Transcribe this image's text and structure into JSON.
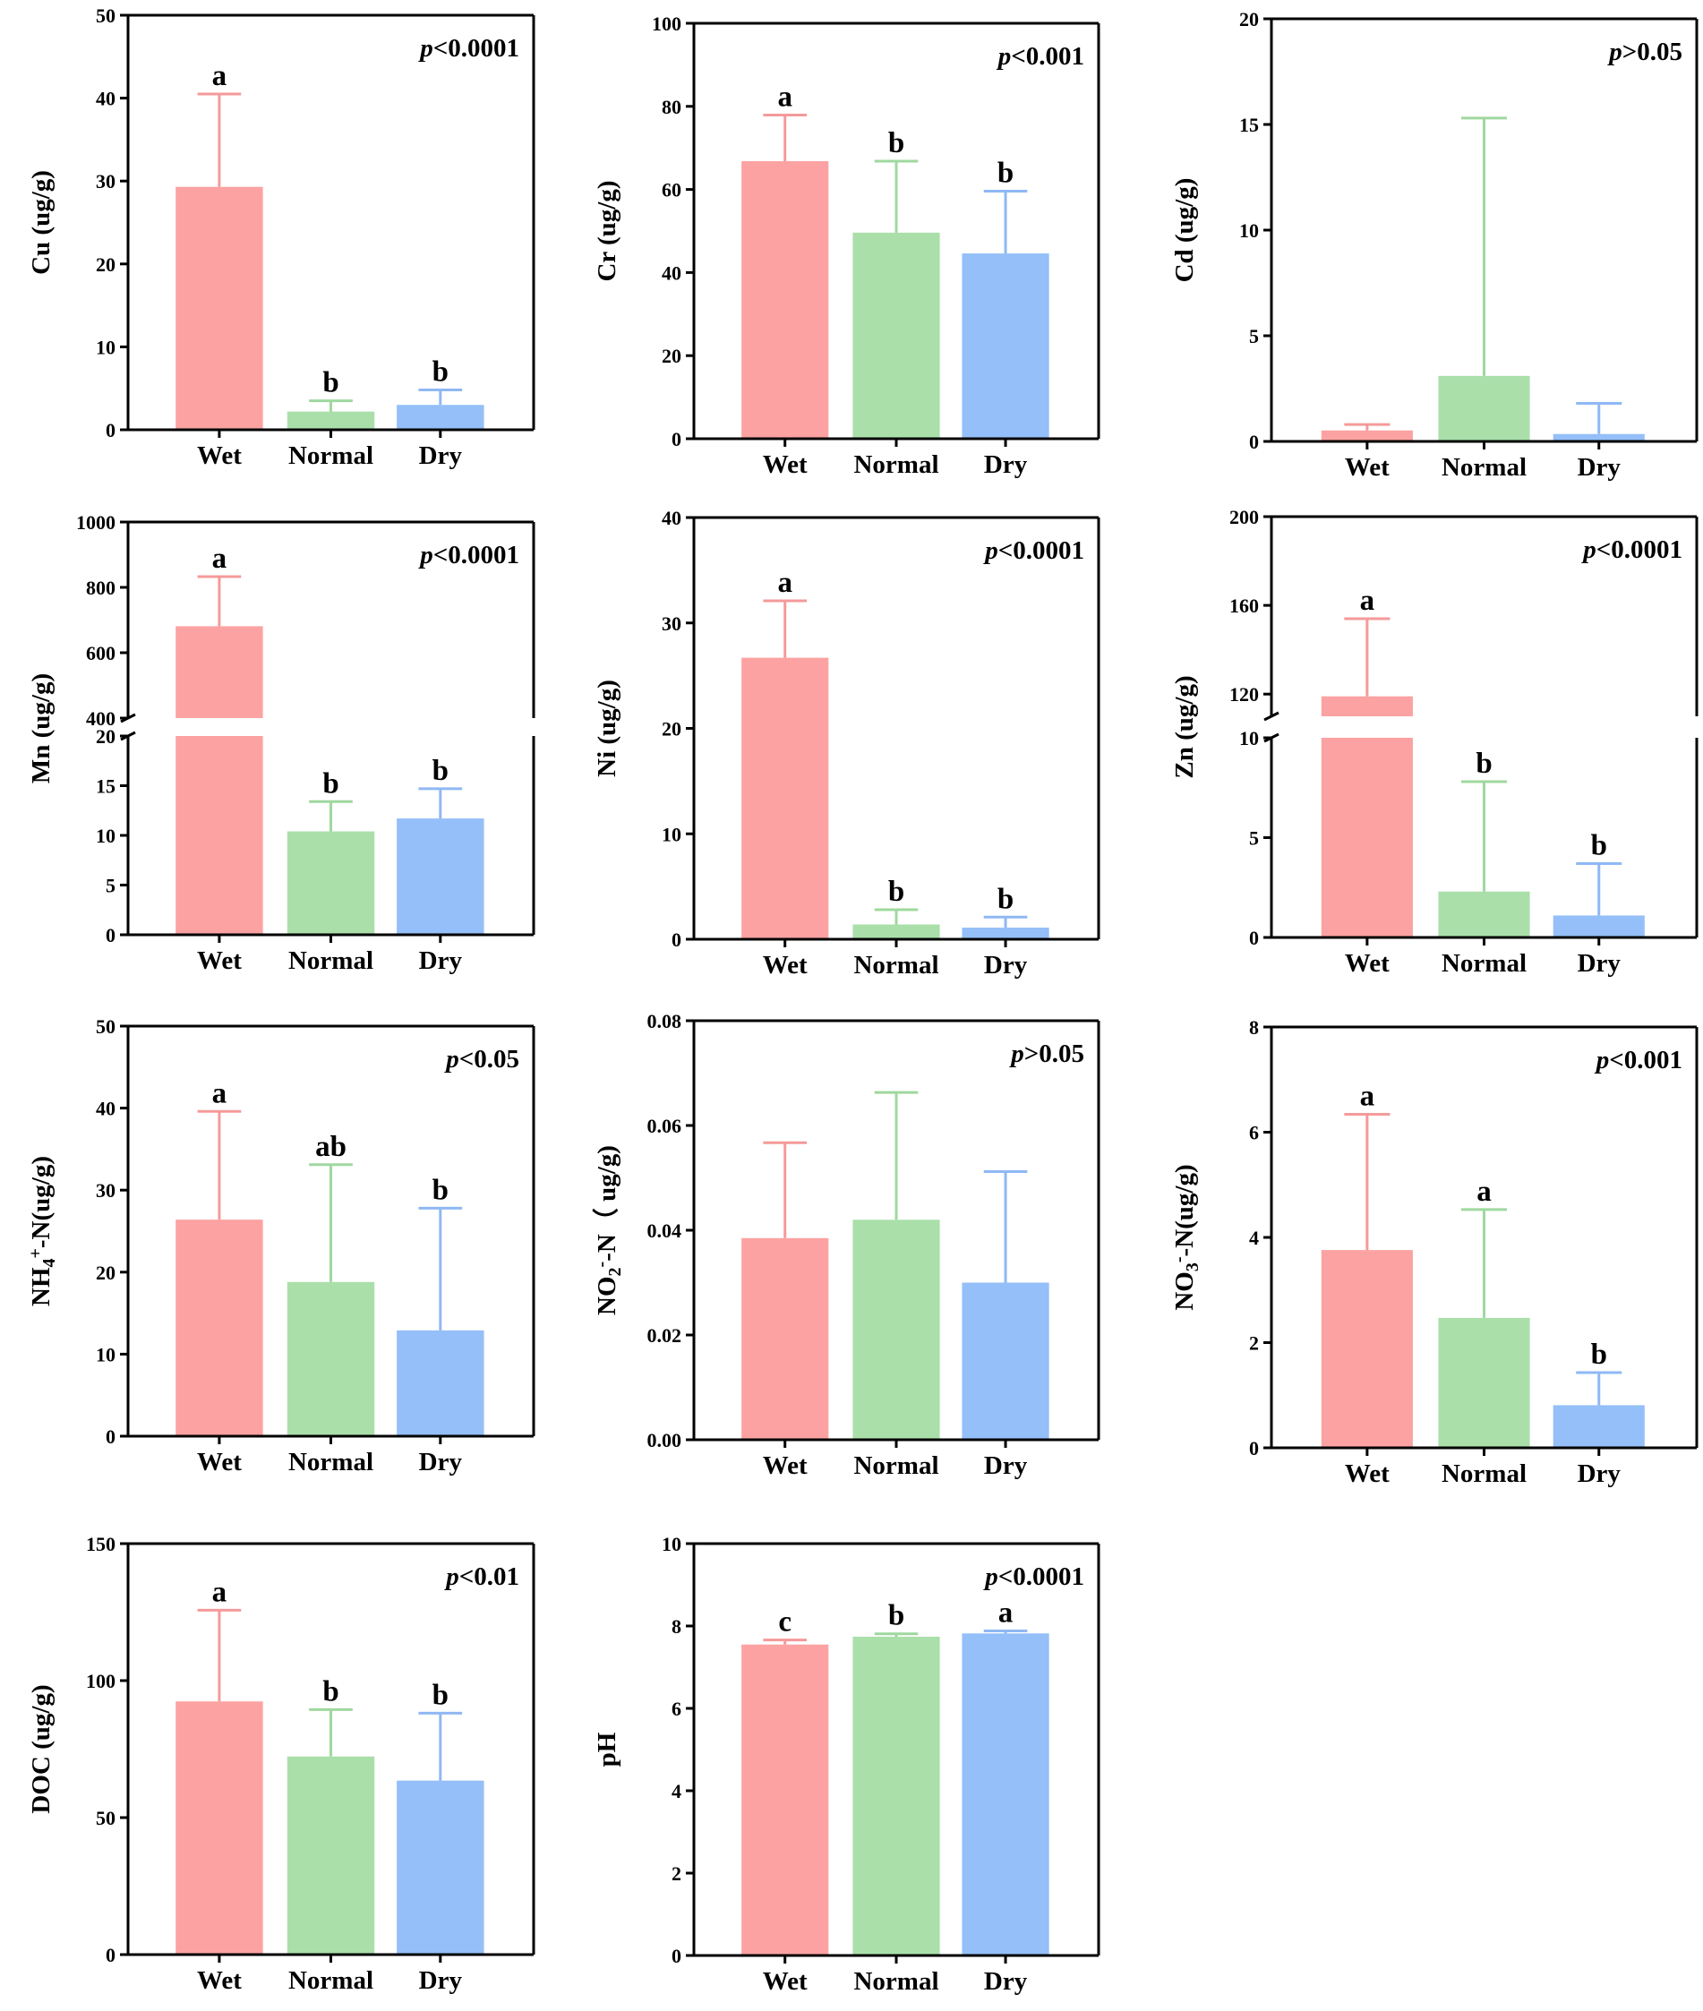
{
  "colors": {
    "Wet": "#fca2a2",
    "Normal": "#aadfaa",
    "Dry": "#94bff8",
    "Wet_err": "#f59a9a",
    "Normal_err": "#9fd89f",
    "Dry_err": "#8fb8f4"
  },
  "chart_data": [
    {
      "type": "bar",
      "title": "",
      "ylabel": "Cu (ug/g)",
      "ylabel_parts": [
        {
          "t": "Cu (ug/g)"
        }
      ],
      "p": "<0.0001",
      "categories": [
        "Wet",
        "Normal",
        "Dry"
      ],
      "values": [
        29.3,
        2.2,
        3.0
      ],
      "errors": [
        40.5,
        3.5,
        4.8
      ],
      "letters": [
        "a",
        "b",
        "b"
      ],
      "ylim": [
        0,
        50
      ],
      "ticks": [
        0,
        10,
        20,
        30,
        40,
        50
      ],
      "tick_labels": [
        "0",
        "10",
        "20",
        "30",
        "40",
        "50"
      ]
    },
    {
      "type": "bar",
      "title": "",
      "ylabel": "Cr (ug/g)",
      "ylabel_parts": [
        {
          "t": "Cr (ug/g)"
        }
      ],
      "p": "<0.001",
      "categories": [
        "Wet",
        "Normal",
        "Dry"
      ],
      "values": [
        66.8,
        49.6,
        44.6
      ],
      "errors": [
        77.9,
        66.8,
        59.6
      ],
      "letters": [
        "a",
        "b",
        "b"
      ],
      "ylim": [
        0,
        100
      ],
      "ticks": [
        0,
        20,
        40,
        60,
        80,
        100
      ],
      "tick_labels": [
        "0",
        "20",
        "40",
        "60",
        "80",
        "100"
      ]
    },
    {
      "type": "bar",
      "title": "",
      "ylabel": "Cd (ug/g)",
      "ylabel_parts": [
        {
          "t": "Cd (ug/g)"
        }
      ],
      "p": ">0.05",
      "categories": [
        "Wet",
        "Normal",
        "Dry"
      ],
      "values": [
        0.52,
        3.1,
        0.35
      ],
      "errors": [
        0.8,
        15.3,
        1.8
      ],
      "letters": [
        "",
        "",
        ""
      ],
      "ylim": [
        0,
        20
      ],
      "ticks": [
        0,
        5,
        10,
        15,
        20
      ],
      "tick_labels": [
        "0",
        "5",
        "10",
        "15",
        "20"
      ]
    },
    {
      "type": "bar",
      "title": "",
      "ylabel": "Mn (ug/g)",
      "ylabel_parts": [
        {
          "t": "Mn (ug/g)"
        }
      ],
      "p": "<0.0001",
      "categories": [
        "Wet",
        "Normal",
        "Dry"
      ],
      "values": [
        681,
        10.4,
        11.7
      ],
      "errors": [
        833,
        13.4,
        14.7
      ],
      "letters": [
        "a",
        "b",
        "b"
      ],
      "axis_break": {
        "lower": [
          0,
          20
        ],
        "upper": [
          400,
          1000
        ]
      },
      "ticks": [
        0,
        5,
        10,
        15,
        20,
        400,
        600,
        800,
        1000
      ],
      "tick_labels": [
        "0",
        "5",
        "10",
        "15",
        "20",
        "400",
        "600",
        "800",
        "1000"
      ]
    },
    {
      "type": "bar",
      "title": "",
      "ylabel": "Ni (ug/g)",
      "ylabel_parts": [
        {
          "t": "Ni (ug/g)"
        }
      ],
      "p": "<0.0001",
      "categories": [
        "Wet",
        "Normal",
        "Dry"
      ],
      "values": [
        26.7,
        1.4,
        1.1
      ],
      "errors": [
        32.1,
        2.8,
        2.1
      ],
      "letters": [
        "a",
        "b",
        "b"
      ],
      "ylim": [
        0,
        40
      ],
      "ticks": [
        0,
        10,
        20,
        30,
        40
      ],
      "tick_labels": [
        "0",
        "10",
        "20",
        "30",
        "40"
      ]
    },
    {
      "type": "bar",
      "title": "",
      "ylabel": "Zn (ug/g)",
      "ylabel_parts": [
        {
          "t": "Zn (ug/g)"
        }
      ],
      "p": "<0.0001",
      "categories": [
        "Wet",
        "Normal",
        "Dry"
      ],
      "values": [
        119,
        2.3,
        1.1
      ],
      "errors": [
        154,
        7.8,
        3.7
      ],
      "letters": [
        "a",
        "b",
        "b"
      ],
      "axis_break": {
        "lower": [
          0,
          10
        ],
        "upper": [
          110,
          200
        ]
      },
      "ticks": [
        0,
        5,
        10,
        120,
        160,
        200
      ],
      "tick_labels": [
        "0",
        "5",
        "10",
        "120",
        "160",
        "200"
      ]
    },
    {
      "type": "bar",
      "title": "",
      "ylabel": "NH4+-N(ug/g)",
      "ylabel_parts": [
        {
          "t": "NH"
        },
        {
          "t": "4",
          "sub": true
        },
        {
          "t": "+",
          "sup": true
        },
        {
          "t": "-N(ug/g)"
        }
      ],
      "p": "<0.05",
      "categories": [
        "Wet",
        "Normal",
        "Dry"
      ],
      "values": [
        26.4,
        18.8,
        12.9
      ],
      "errors": [
        39.6,
        33.1,
        27.8
      ],
      "letters": [
        "a",
        "ab",
        "b"
      ],
      "ylim": [
        0,
        50
      ],
      "ticks": [
        0,
        10,
        20,
        30,
        40,
        50
      ],
      "tick_labels": [
        "0",
        "10",
        "20",
        "30",
        "40",
        "50"
      ]
    },
    {
      "type": "bar",
      "title": "",
      "ylabel": "NO2--N（ ug/g)",
      "ylabel_parts": [
        {
          "t": "NO"
        },
        {
          "t": "2",
          "sub": true
        },
        {
          "t": "-",
          "sup": true
        },
        {
          "t": "-N（ ug/g)"
        }
      ],
      "p": ">0.05",
      "categories": [
        "Wet",
        "Normal",
        "Dry"
      ],
      "values": [
        0.0385,
        0.042,
        0.03
      ],
      "errors": [
        0.0567,
        0.0663,
        0.0512
      ],
      "letters": [
        "",
        "",
        ""
      ],
      "ylim": [
        0,
        0.08
      ],
      "ticks": [
        0,
        0.02,
        0.04,
        0.06,
        0.08
      ],
      "tick_labels": [
        "0.00",
        "0.02",
        "0.04",
        "0.06",
        "0.08"
      ]
    },
    {
      "type": "bar",
      "title": "",
      "ylabel": "NO3--N(ug/g)",
      "ylabel_parts": [
        {
          "t": "NO"
        },
        {
          "t": "3",
          "sub": true
        },
        {
          "t": "-",
          "sup": true
        },
        {
          "t": "-N(ug/g)"
        }
      ],
      "p": "<0.001",
      "categories": [
        "Wet",
        "Normal",
        "Dry"
      ],
      "values": [
        3.76,
        2.47,
        0.81
      ],
      "errors": [
        6.34,
        4.53,
        1.43
      ],
      "letters": [
        "a",
        "a",
        "b"
      ],
      "ylim": [
        0,
        8
      ],
      "ticks": [
        0,
        2,
        4,
        6,
        8
      ],
      "tick_labels": [
        "0",
        "2",
        "4",
        "6",
        "8"
      ]
    },
    {
      "type": "bar",
      "title": "",
      "ylabel": "DOC (ug/g)",
      "ylabel_parts": [
        {
          "t": "DOC (ug/g)"
        }
      ],
      "p": "<0.01",
      "categories": [
        "Wet",
        "Normal",
        "Dry"
      ],
      "values": [
        92.4,
        72.3,
        63.5
      ],
      "errors": [
        125.7,
        89.4,
        88.1
      ],
      "letters": [
        "a",
        "b",
        "b"
      ],
      "ylim": [
        0,
        150
      ],
      "ticks": [
        0,
        50,
        100,
        150
      ],
      "tick_labels": [
        "0",
        "50",
        "100",
        "150"
      ]
    },
    {
      "type": "bar",
      "title": "",
      "ylabel": "pH",
      "ylabel_parts": [
        {
          "t": "pH"
        }
      ],
      "p": "<0.0001",
      "categories": [
        "Wet",
        "Normal",
        "Dry"
      ],
      "values": [
        7.55,
        7.74,
        7.82
      ],
      "errors": [
        7.66,
        7.81,
        7.88
      ],
      "letters": [
        "c",
        "b",
        "a"
      ],
      "ylim": [
        0,
        10
      ],
      "ticks": [
        0,
        2,
        4,
        6,
        8,
        10
      ],
      "tick_labels": [
        "0",
        "2",
        "4",
        "6",
        "8",
        "10"
      ]
    }
  ]
}
